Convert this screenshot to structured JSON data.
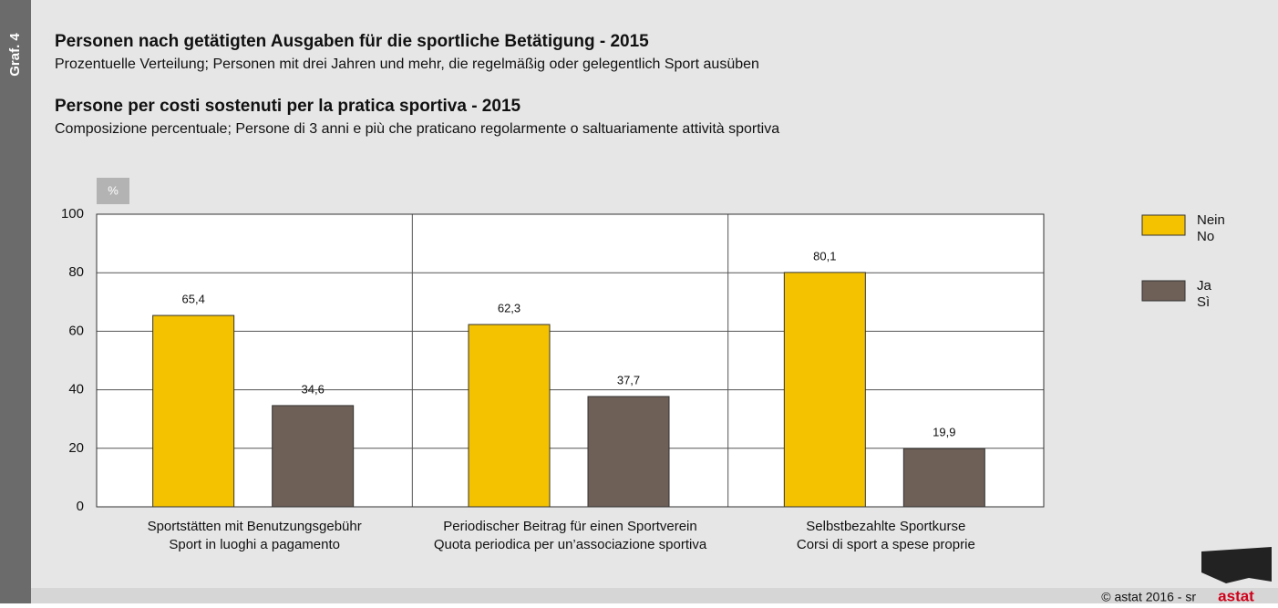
{
  "label": "Graf. 4",
  "footer": {
    "credit": "© astat 2016 - sr",
    "logo": "astat"
  },
  "chart_data": {
    "type": "bar",
    "title": "Personen nach getätigten Ausgaben für die sportliche Betätigung - 2015",
    "subtitle": "Prozentuelle Verteilung; Personen mit drei Jahren und mehr, die regelmäßig oder gelegentlich Sport ausüben",
    "title2": "Persone per costi sostenuti per la pratica sportiva - 2015",
    "subtitle2": "Composizione percentuale; Persone di 3 anni e più che praticano regolarmente o saltuariamente attività sportiva",
    "ylabel": "%",
    "categories": [
      [
        "Sportstätten mit Benutzungsgebühr",
        "Sport in luoghi a pagamento"
      ],
      [
        "Periodischer Beitrag für einen Sportverein",
        "Quota periodica per un’associazione sportiva"
      ],
      [
        "Selbstbezahlte Sportkurse",
        "Corsi di sport a spese proprie"
      ]
    ],
    "series": [
      {
        "name": [
          "Nein",
          "No"
        ],
        "color": "#f5c200",
        "values": [
          65.4,
          62.3,
          80.1
        ],
        "value_labels": [
          "65,4",
          "62,3",
          "80,1"
        ]
      },
      {
        "name": [
          "Ja",
          "Sì"
        ],
        "color": "#6e5f57",
        "values": [
          34.6,
          37.7,
          19.9
        ],
        "value_labels": [
          "34,6",
          "37,7",
          "19,9"
        ]
      }
    ],
    "ylim": [
      0,
      100
    ],
    "yticks": [
      0,
      20,
      40,
      60,
      80,
      100
    ],
    "grid": true,
    "legend": "right"
  }
}
